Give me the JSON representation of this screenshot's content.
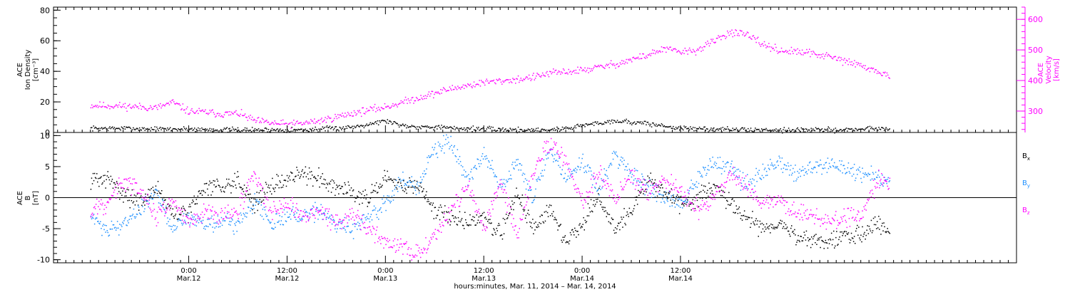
{
  "chart_data": [
    {
      "type": "scatter",
      "panel": "top",
      "left_axis": {
        "label_lines": [
          "ACE",
          "Ion Density",
          "[cm⁻³]"
        ],
        "range": [
          0,
          82
        ],
        "ticks": [
          0,
          20,
          40,
          60,
          80
        ]
      },
      "right_axis": {
        "label_lines": [
          "ACE",
          "Velocity",
          "[km/s]"
        ],
        "range": [
          230,
          640
        ],
        "ticks": [
          300,
          400,
          500,
          600
        ]
      },
      "grid": false,
      "series": [
        {
          "axis": "left",
          "color": "#000000",
          "x": [
            -12,
            -8,
            -4,
            0,
            4,
            8,
            12,
            14,
            16,
            18,
            20,
            22,
            24,
            26,
            28,
            30,
            32,
            34,
            36,
            40,
            44,
            46,
            48,
            52,
            56,
            60,
            64,
            68,
            72,
            76,
            80,
            84,
            85.5
          ],
          "y": [
            3,
            3,
            2.5,
            2.5,
            2,
            2,
            2,
            2,
            2.5,
            3,
            4,
            6,
            8,
            5,
            4,
            4,
            3,
            3,
            2.5,
            2,
            2,
            3,
            5,
            8,
            6,
            3,
            2.5,
            2,
            2,
            2,
            2,
            3,
            3
          ]
        },
        {
          "axis": "right",
          "color": "#ff00ff",
          "x": [
            -12,
            -8,
            -4,
            -2,
            0,
            2,
            4,
            6,
            8,
            10,
            12,
            14,
            16,
            18,
            20,
            22,
            24,
            26,
            28,
            30,
            32,
            34,
            36,
            38,
            40,
            42,
            44,
            46,
            48,
            50,
            52,
            54,
            56,
            58,
            60,
            62,
            64,
            66,
            68,
            70,
            72,
            74,
            76,
            78,
            80,
            82,
            84,
            85.5
          ],
          "y": [
            320,
            318,
            312,
            330,
            300,
            298,
            292,
            294,
            270,
            262,
            258,
            262,
            270,
            282,
            295,
            305,
            315,
            330,
            345,
            360,
            375,
            385,
            395,
            400,
            405,
            412,
            425,
            430,
            435,
            445,
            455,
            470,
            485,
            505,
            495,
            500,
            530,
            560,
            550,
            520,
            500,
            495,
            490,
            480,
            465,
            450,
            430,
            415
          ]
        }
      ]
    },
    {
      "type": "scatter",
      "panel": "bottom",
      "left_axis": {
        "label_lines": [
          "ACE",
          "B",
          "[nT]"
        ],
        "range": [
          -10.5,
          10.5
        ],
        "ticks": [
          -10,
          -5,
          0,
          5,
          10
        ]
      },
      "grid": false,
      "zero_line": true,
      "legend": {
        "position": "right",
        "entries": [
          {
            "label": "B",
            "sub": "x",
            "color": "#000000"
          },
          {
            "label": "B",
            "sub": "y",
            "color": "#1e90ff"
          },
          {
            "label": "B",
            "sub": "z",
            "color": "#ff00ff"
          }
        ]
      },
      "series": [
        {
          "name": "Bx",
          "color": "#000000",
          "x": [
            -12,
            -10,
            -8,
            -6,
            -4,
            -2,
            0,
            2,
            4,
            6,
            8,
            10,
            12,
            14,
            16,
            18,
            20,
            22,
            24,
            26,
            28,
            30,
            32,
            34,
            36,
            38,
            40,
            42,
            44,
            46,
            48,
            50,
            52,
            54,
            56,
            58,
            60,
            62,
            64,
            66,
            68,
            70,
            72,
            74,
            76,
            78,
            80,
            82,
            84,
            85.5
          ],
          "y": [
            3,
            3,
            1,
            -1,
            2,
            -3,
            -2,
            2,
            2,
            3,
            -1,
            2,
            3,
            4,
            3,
            2,
            1,
            0,
            3,
            2,
            2,
            -2,
            -3,
            -4,
            -3,
            -6,
            1,
            -5,
            -2,
            -7,
            -4,
            0,
            -5,
            -2,
            3,
            1,
            -1,
            0,
            2,
            -1,
            -3,
            -5,
            -4,
            -6,
            -7,
            -7,
            -6,
            -6,
            -4,
            -5.5
          ]
        },
        {
          "name": "By",
          "color": "#1e90ff",
          "x": [
            -12,
            -10,
            -8,
            -6,
            -4,
            -2,
            0,
            2,
            4,
            6,
            8,
            10,
            12,
            14,
            16,
            18,
            20,
            22,
            24,
            26,
            28,
            30,
            32,
            34,
            36,
            38,
            40,
            42,
            44,
            46,
            48,
            50,
            52,
            54,
            56,
            58,
            60,
            62,
            64,
            66,
            68,
            70,
            72,
            74,
            76,
            78,
            80,
            82,
            84,
            85.5
          ],
          "y": [
            -3,
            -5,
            -4,
            -2,
            1,
            -5,
            -3,
            -4,
            -4,
            -4,
            0,
            -4,
            -3,
            -3,
            -2,
            -4,
            -5,
            -3,
            -1,
            3,
            2,
            8,
            9,
            3,
            7,
            2,
            6,
            0,
            8,
            3,
            6,
            1,
            7,
            4,
            2,
            0,
            -1,
            3,
            6,
            5,
            2,
            4,
            6,
            4,
            5,
            5,
            5,
            4,
            3,
            3
          ]
        },
        {
          "name": "Bz",
          "color": "#ff00ff",
          "x": [
            -12,
            -10,
            -8,
            -6,
            -4,
            -2,
            0,
            2,
            4,
            6,
            8,
            10,
            12,
            14,
            16,
            18,
            20,
            22,
            24,
            26,
            28,
            30,
            32,
            34,
            36,
            38,
            40,
            42,
            44,
            46,
            48,
            50,
            52,
            54,
            56,
            58,
            60,
            62,
            64,
            66,
            68,
            70,
            72,
            74,
            76,
            78,
            80,
            82,
            84,
            85.5
          ],
          "y": [
            -2,
            -1,
            3,
            1,
            -3,
            0,
            -4,
            -2,
            -3,
            -2,
            4,
            -2,
            -1,
            -3,
            -2,
            -4,
            -3,
            -5,
            -7,
            -8,
            -9,
            -6,
            -2,
            2,
            -5,
            3,
            -6,
            4,
            9,
            6,
            -1,
            4,
            0,
            4,
            1,
            3,
            1,
            -2,
            0,
            4,
            2,
            -1,
            0,
            -2,
            -3,
            -4,
            -3,
            -3,
            3,
            2
          ]
        }
      ]
    }
  ],
  "x_axis": {
    "range_hours": [
      -16.5,
      101
    ],
    "major_ticks": [
      {
        "x": 0,
        "time": "0:00",
        "date": "Mar.12"
      },
      {
        "x": 12,
        "time": "12:00",
        "date": "Mar.12"
      },
      {
        "x": 24,
        "time": "0:00",
        "date": "Mar.13"
      },
      {
        "x": 36,
        "time": "12:00",
        "date": "Mar.13"
      },
      {
        "x": 48,
        "time": "0:00",
        "date": "Mar.14"
      },
      {
        "x": 60,
        "time": "12:00",
        "date": "Mar.14"
      }
    ],
    "title": "hours:minutes, Mar. 11, 2014 – Mar. 14, 2014"
  }
}
